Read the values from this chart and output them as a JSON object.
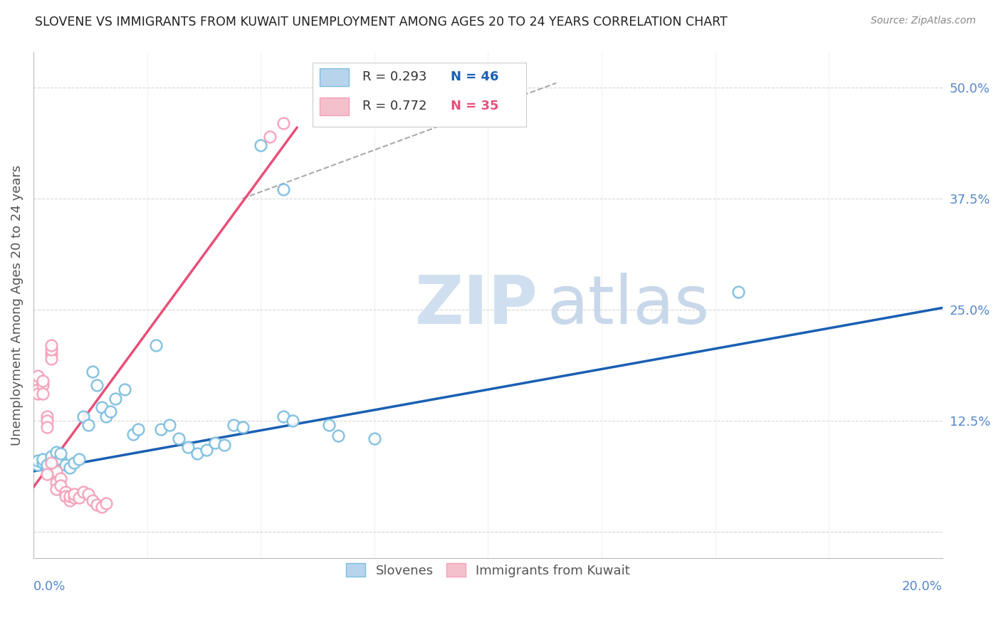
{
  "title": "SLOVENE VS IMMIGRANTS FROM KUWAIT UNEMPLOYMENT AMONG AGES 20 TO 24 YEARS CORRELATION CHART",
  "source": "Source: ZipAtlas.com",
  "ylabel": "Unemployment Among Ages 20 to 24 years",
  "xlim": [
    0.0,
    0.2
  ],
  "ylim": [
    -0.03,
    0.54
  ],
  "yticks": [
    0.0,
    0.125,
    0.25,
    0.375,
    0.5
  ],
  "ytick_labels": [
    "",
    "12.5%",
    "25.0%",
    "37.5%",
    "50.0%"
  ],
  "slovene_scatter": [
    [
      0.001,
      0.075
    ],
    [
      0.001,
      0.08
    ],
    [
      0.002,
      0.078
    ],
    [
      0.002,
      0.082
    ],
    [
      0.003,
      0.072
    ],
    [
      0.003,
      0.075
    ],
    [
      0.004,
      0.08
    ],
    [
      0.004,
      0.085
    ],
    [
      0.005,
      0.078
    ],
    [
      0.005,
      0.09
    ],
    [
      0.006,
      0.082
    ],
    [
      0.006,
      0.088
    ],
    [
      0.007,
      0.075
    ],
    [
      0.008,
      0.072
    ],
    [
      0.009,
      0.078
    ],
    [
      0.01,
      0.082
    ],
    [
      0.011,
      0.13
    ],
    [
      0.012,
      0.12
    ],
    [
      0.013,
      0.18
    ],
    [
      0.014,
      0.165
    ],
    [
      0.015,
      0.14
    ],
    [
      0.016,
      0.13
    ],
    [
      0.017,
      0.135
    ],
    [
      0.018,
      0.15
    ],
    [
      0.02,
      0.16
    ],
    [
      0.022,
      0.11
    ],
    [
      0.023,
      0.115
    ],
    [
      0.027,
      0.21
    ],
    [
      0.028,
      0.115
    ],
    [
      0.03,
      0.12
    ],
    [
      0.032,
      0.105
    ],
    [
      0.034,
      0.095
    ],
    [
      0.036,
      0.088
    ],
    [
      0.038,
      0.092
    ],
    [
      0.04,
      0.1
    ],
    [
      0.042,
      0.098
    ],
    [
      0.044,
      0.12
    ],
    [
      0.046,
      0.118
    ],
    [
      0.055,
      0.13
    ],
    [
      0.057,
      0.125
    ],
    [
      0.065,
      0.12
    ],
    [
      0.067,
      0.108
    ],
    [
      0.075,
      0.105
    ],
    [
      0.05,
      0.435
    ],
    [
      0.055,
      0.385
    ],
    [
      0.155,
      0.27
    ]
  ],
  "kuwait_scatter": [
    [
      0.001,
      0.16
    ],
    [
      0.001,
      0.155
    ],
    [
      0.001,
      0.175
    ],
    [
      0.002,
      0.165
    ],
    [
      0.002,
      0.17
    ],
    [
      0.002,
      0.155
    ],
    [
      0.003,
      0.13
    ],
    [
      0.003,
      0.125
    ],
    [
      0.003,
      0.118
    ],
    [
      0.004,
      0.2
    ],
    [
      0.004,
      0.195
    ],
    [
      0.004,
      0.205
    ],
    [
      0.004,
      0.21
    ],
    [
      0.005,
      0.068
    ],
    [
      0.005,
      0.055
    ],
    [
      0.005,
      0.048
    ],
    [
      0.006,
      0.06
    ],
    [
      0.006,
      0.052
    ],
    [
      0.007,
      0.045
    ],
    [
      0.007,
      0.04
    ],
    [
      0.008,
      0.035
    ],
    [
      0.008,
      0.04
    ],
    [
      0.009,
      0.038
    ],
    [
      0.009,
      0.042
    ],
    [
      0.01,
      0.038
    ],
    [
      0.011,
      0.045
    ],
    [
      0.012,
      0.042
    ],
    [
      0.013,
      0.035
    ],
    [
      0.014,
      0.03
    ],
    [
      0.015,
      0.028
    ],
    [
      0.016,
      0.032
    ],
    [
      0.052,
      0.445
    ],
    [
      0.055,
      0.46
    ],
    [
      0.004,
      0.078
    ],
    [
      0.003,
      0.065
    ]
  ],
  "slovene_line_x": [
    0.0,
    0.2
  ],
  "slovene_line_y": [
    0.068,
    0.252
  ],
  "kuwait_line_x": [
    0.0,
    0.058
  ],
  "kuwait_line_y": [
    0.05,
    0.455
  ],
  "dashed_line_x": [
    0.046,
    0.115
  ],
  "dashed_line_y": [
    0.375,
    0.505
  ],
  "scatter_blue": "#7bbde0",
  "scatter_pink": "#f4a0b8",
  "line_blue": "#1a5fb4",
  "line_pink": "#e8507a",
  "watermark_zip": "ZIP",
  "watermark_atlas": "atlas",
  "watermark_color": "#d0dff0",
  "grid_color": "#cccccc",
  "title_color": "#222222",
  "axis_label_color": "#5588cc",
  "legend_r_color": "#1a5fb4",
  "legend_n_color": "#1a5fb4",
  "legend_r_color_pink": "#e8507a",
  "legend_n_color_pink": "#e8507a"
}
